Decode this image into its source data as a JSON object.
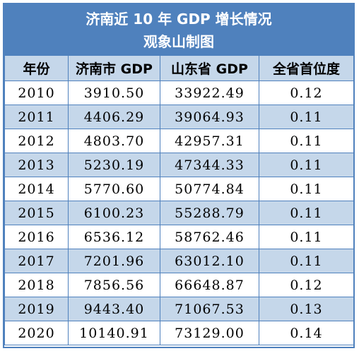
{
  "title": {
    "line1": "济南近 10 年 GDP 增长情况",
    "line2": "观象山制图"
  },
  "colors": {
    "header_bg": "#4f81bd",
    "alt_row_bg": "#c5d7ea",
    "border": "#4f81bd"
  },
  "table": {
    "headers": [
      "年份",
      "济南市 GDP",
      "山东省 GDP",
      "全省首位度"
    ],
    "rows": [
      [
        "2010",
        "3910.50",
        "33922.49",
        "0.12"
      ],
      [
        "2011",
        "4406.29",
        "39064.93",
        "0.11"
      ],
      [
        "2012",
        "4803.70",
        "42957.31",
        "0.11"
      ],
      [
        "2013",
        "5230.19",
        "47344.33",
        "0.11"
      ],
      [
        "2014",
        "5770.60",
        "50774.84",
        "0.11"
      ],
      [
        "2015",
        "6100.23",
        "55288.79",
        "0.11"
      ],
      [
        "2016",
        "6536.12",
        "58762.46",
        "0.11"
      ],
      [
        "2017",
        "7201.96",
        "63012.10",
        "0.11"
      ],
      [
        "2018",
        "7856.56",
        "66648.87",
        "0.12"
      ],
      [
        "2019",
        "9443.40",
        "71067.53",
        "0.13"
      ],
      [
        "2020",
        "10140.91",
        "73129.00",
        "0.14"
      ]
    ]
  }
}
